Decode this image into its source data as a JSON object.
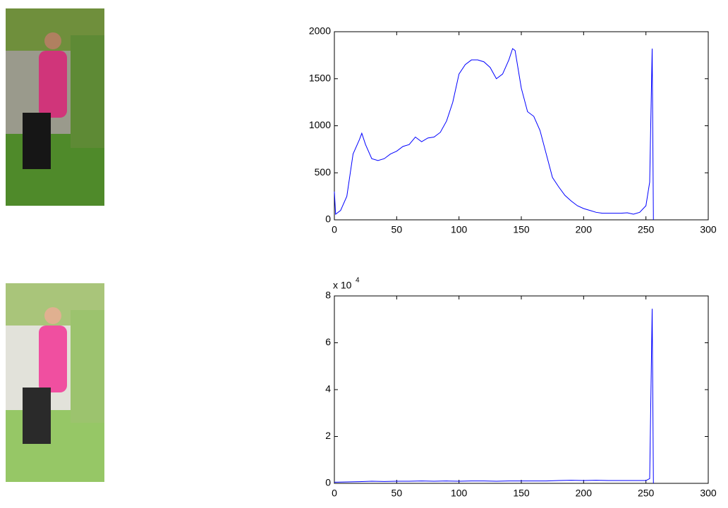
{
  "chart_data": [
    {
      "type": "line",
      "color": "#0000ff",
      "x": [
        0,
        1,
        5,
        10,
        15,
        20,
        22,
        25,
        30,
        35,
        40,
        45,
        50,
        55,
        60,
        65,
        70,
        75,
        80,
        85,
        90,
        95,
        100,
        105,
        110,
        115,
        120,
        125,
        130,
        135,
        140,
        143,
        145,
        150,
        155,
        160,
        165,
        170,
        175,
        180,
        185,
        190,
        195,
        200,
        205,
        210,
        215,
        220,
        225,
        230,
        235,
        240,
        245,
        250,
        253,
        255,
        256
      ],
      "values": [
        300,
        60,
        100,
        250,
        700,
        850,
        920,
        800,
        650,
        630,
        650,
        700,
        730,
        780,
        800,
        880,
        830,
        870,
        880,
        930,
        1050,
        1250,
        1550,
        1650,
        1700,
        1700,
        1680,
        1620,
        1500,
        1550,
        1700,
        1820,
        1800,
        1400,
        1150,
        1100,
        950,
        700,
        450,
        350,
        260,
        200,
        150,
        120,
        100,
        80,
        70,
        70,
        70,
        70,
        75,
        60,
        80,
        150,
        400,
        1820,
        0
      ],
      "xlim": [
        0,
        300
      ],
      "xticks": [
        0,
        50,
        100,
        150,
        200,
        250,
        300
      ],
      "ylim": [
        0,
        2000
      ],
      "yticks": [
        0,
        500,
        1000,
        1500,
        2000
      ]
    },
    {
      "type": "line",
      "color": "#0000ff",
      "multiplier": "x 10",
      "multiplier_exponent": "4",
      "x": [
        0,
        10,
        20,
        30,
        40,
        50,
        60,
        70,
        80,
        90,
        100,
        110,
        120,
        130,
        140,
        150,
        160,
        170,
        180,
        190,
        200,
        210,
        220,
        230,
        240,
        250,
        253,
        255,
        256
      ],
      "values": [
        500,
        600,
        700,
        900,
        800,
        900,
        900,
        1000,
        900,
        1000,
        900,
        1000,
        1000,
        900,
        1000,
        1000,
        1000,
        1000,
        1200,
        1300,
        1200,
        1300,
        1200,
        1200,
        1200,
        1200,
        2000,
        74500,
        0
      ],
      "xlim": [
        0,
        300
      ],
      "xticks": [
        0,
        50,
        100,
        150,
        200,
        250,
        300
      ],
      "ylim": [
        0,
        80000
      ],
      "yticks": [
        {
          "value": 0,
          "label": "0"
        },
        {
          "value": 20000,
          "label": "2"
        },
        {
          "value": 40000,
          "label": "4"
        },
        {
          "value": 60000,
          "label": "6"
        },
        {
          "value": 80000,
          "label": "8"
        }
      ]
    }
  ]
}
